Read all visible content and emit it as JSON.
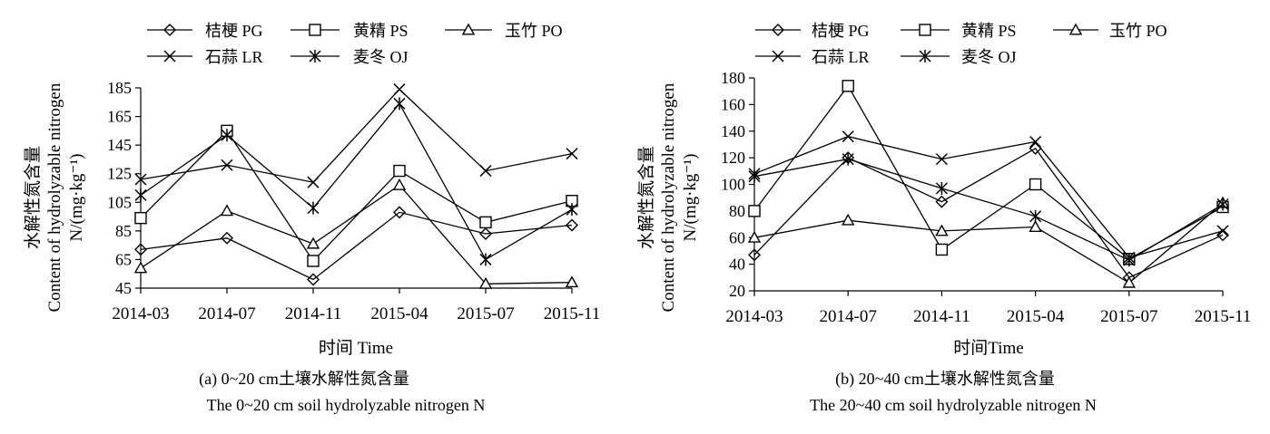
{
  "chart_data": [
    {
      "type": "line",
      "title": "(a) 0~20 cm土壤水解性氮含量",
      "subtitle": "The  0~20 cm soil hydrolyzable  nitrogen N",
      "xlabel": "时间  Time",
      "ylabel_cn": "水解性氮含量",
      "ylabel_en": "Content of hydrolyzable nitrogen",
      "ylabel_unit": "N/(mg·kg⁻¹)",
      "categories": [
        "2014-03",
        "2014-07",
        "2014-11",
        "2015-04",
        "2015-07",
        "2015-11"
      ],
      "ylim": [
        45,
        185
      ],
      "yticks": [
        45,
        65,
        85,
        105,
        125,
        145,
        165,
        185
      ],
      "series": [
        {
          "name": "桔梗  PG",
          "marker": "diamond",
          "values": [
            72,
            80,
            51,
            98,
            83,
            89
          ]
        },
        {
          "name": "黄精  PS",
          "marker": "square",
          "values": [
            94,
            155,
            64,
            127,
            91,
            106
          ]
        },
        {
          "name": "玉竹  PO",
          "marker": "triangle",
          "values": [
            59,
            99,
            76,
            117,
            48,
            49
          ]
        },
        {
          "name": "石蒜  LR",
          "marker": "x",
          "values": [
            121,
            131,
            119,
            184,
            127,
            139
          ]
        },
        {
          "name": "麦冬  OJ",
          "marker": "star",
          "values": [
            110,
            152,
            101,
            174,
            65,
            100
          ]
        }
      ]
    },
    {
      "type": "line",
      "title": "(b) 20~40  cm土壤水解性氮含量",
      "subtitle": "The 20~40  cm soil hydrolyzable  nitrogen N",
      "xlabel": "时间Time",
      "ylabel_cn": "水解性氮含量",
      "ylabel_en": "Content of hydrolyzable nitrogen",
      "ylabel_unit": "N/(mg·kg⁻¹)",
      "categories": [
        "2014-03",
        "2014-07",
        "2014-11",
        "2015-04",
        "2015-07",
        "2015-11"
      ],
      "ylim": [
        20,
        180
      ],
      "yticks": [
        20,
        40,
        60,
        80,
        100,
        120,
        140,
        160,
        180
      ],
      "series": [
        {
          "name": "桔梗  PG",
          "marker": "diamond",
          "values": [
            47,
            120,
            87,
            127,
            30,
            62
          ]
        },
        {
          "name": "黄精  PS",
          "marker": "square",
          "values": [
            80,
            174,
            51,
            100,
            44,
            83
          ]
        },
        {
          "name": "玉竹  PO",
          "marker": "triangle",
          "values": [
            60,
            73,
            65,
            68,
            26,
            86
          ]
        },
        {
          "name": "石蒜  LR",
          "marker": "x",
          "values": [
            108,
            136,
            119,
            132,
            45,
            65
          ]
        },
        {
          "name": "麦冬  OJ",
          "marker": "star",
          "values": [
            106,
            119,
            97,
            76,
            43,
            85
          ]
        }
      ]
    }
  ]
}
